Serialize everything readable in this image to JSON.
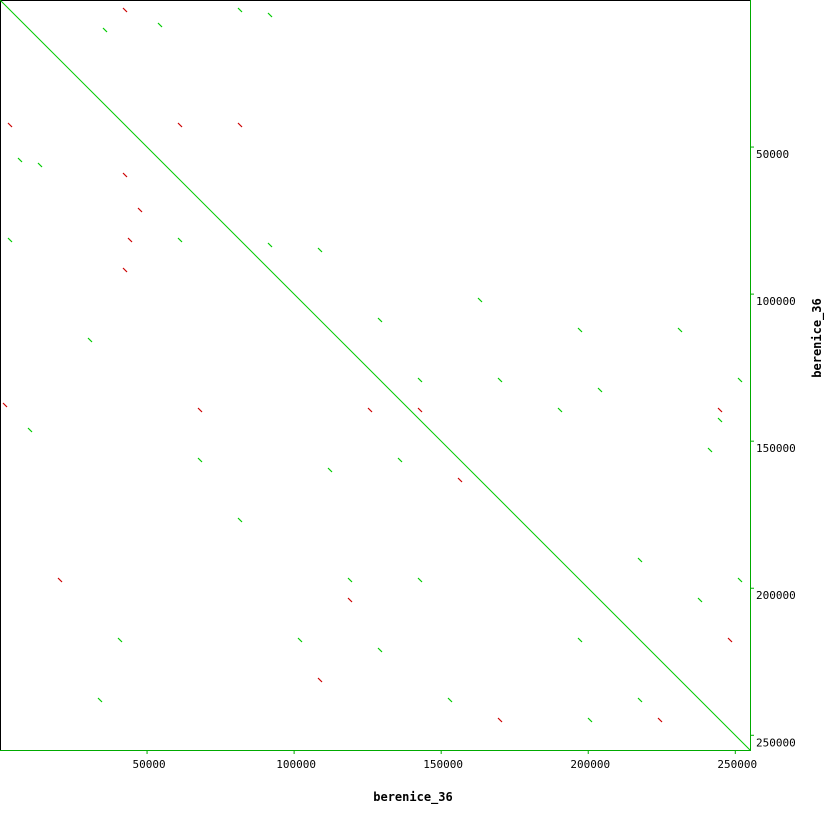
{
  "chart_data": {
    "type": "dotplot",
    "xlabel": "berenice_36",
    "ylabel": "berenice_36",
    "xlim": [
      0,
      255000
    ],
    "ylim": [
      0,
      255000
    ],
    "y_inverted": true,
    "xticks": [
      50000,
      100000,
      150000,
      200000,
      250000
    ],
    "yticks": [
      50000,
      100000,
      150000,
      200000,
      250000
    ],
    "diagonal": {
      "color": "#00cc00",
      "x": [
        0,
        255000
      ],
      "y": [
        0,
        255000
      ]
    },
    "series": [
      {
        "color": "#00cc00",
        "x": [
          81600,
          54400,
          35700,
          91800,
          6800,
          13600,
          3400,
          61200,
          91800,
          108800,
          129200,
          163200,
          142800,
          197200,
          204000,
          231200,
          244800,
          241400,
          190400,
          136000,
          119000,
          142800,
          102000,
          129200,
          197200,
          217600,
          200600,
          238000,
          40800,
          34000,
          10200,
          81600,
          112200,
          170000,
          251600,
          153000,
          30600,
          68000,
          217600,
          251600
        ],
        "y": [
          3400,
          8500,
          10200,
          5100,
          54400,
          56100,
          81600,
          81600,
          83300,
          85000,
          108800,
          102000,
          129200,
          112200,
          132600,
          112200,
          142800,
          153000,
          139400,
          156400,
          197200,
          197200,
          217600,
          221000,
          217600,
          238000,
          244800,
          204000,
          217600,
          238000,
          146200,
          176800,
          159800,
          129200,
          129200,
          238000,
          115600,
          156400,
          190400,
          197200
        ]
      },
      {
        "color": "#cc0000",
        "x": [
          42500,
          3400,
          81600,
          61200,
          42500,
          47600,
          44200,
          42500,
          1700,
          125800,
          142800,
          244800,
          156400,
          68000,
          248200,
          224400,
          119000,
          20400,
          108800,
          170000
        ],
        "y": [
          3400,
          42500,
          42500,
          42500,
          59500,
          71400,
          81600,
          91800,
          137700,
          139400,
          139400,
          139400,
          163200,
          139400,
          217600,
          244800,
          204000,
          197200,
          231200,
          244800
        ]
      }
    ]
  }
}
